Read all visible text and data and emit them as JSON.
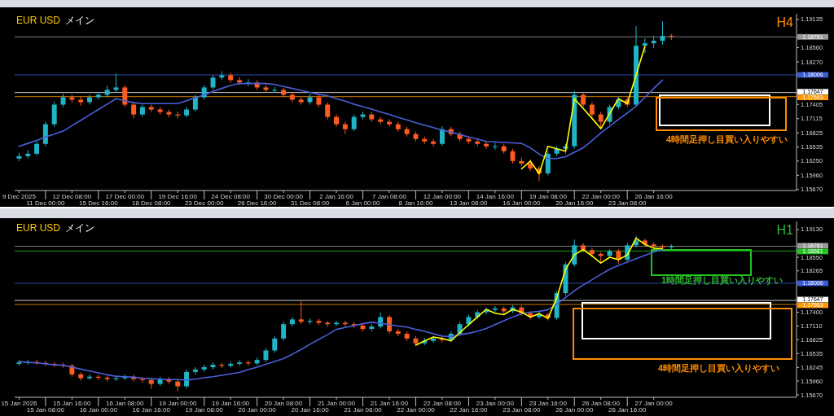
{
  "chart_data": [
    {
      "type": "candlestick",
      "title": "EUR USD",
      "subtitle": "メイン",
      "annotations": [
        "H4",
        "4時間足押し目買い入りやすい"
      ],
      "categories": [
        "9 Dec 2025",
        null,
        null,
        "11 Dec 00:00",
        null,
        null,
        "12 Dec 08:00",
        null,
        null,
        "15 Dec 16:00",
        null,
        null,
        "17 Dec 00:00",
        null,
        null,
        "18 Dec 08:00",
        null,
        null,
        "19 Dec 16:00",
        null,
        null,
        "23 Dec 00:00",
        null,
        null,
        "24 Dec 08:00",
        null,
        null,
        "26 Dec 16:00",
        null,
        null,
        "30 Dec 00:00",
        null,
        null,
        "31 Dec 08:00",
        null,
        null,
        "2 Jan 16:00",
        null,
        null,
        "6 Jan 00:00",
        null,
        null,
        "7 Jan 08:00",
        null,
        null,
        "8 Jan 16:00",
        null,
        null,
        "12 Jan 00:00",
        null,
        null,
        "13 Jan 08:00",
        null,
        null,
        "14 Jan 16:00",
        null,
        null,
        "16 Jan 00:00",
        null,
        null,
        "19 Jan 08:00",
        null,
        null,
        "20 Jan 16:00",
        null,
        null,
        "22 Jan 00:00",
        null,
        null,
        "23 Jan 08:00",
        null,
        null,
        "26 Jan 16:00",
        null,
        null
      ],
      "ohlc": [
        [
          1.163,
          1.1642,
          1.1625,
          1.1635
        ],
        [
          1.1635,
          1.1648,
          1.163,
          1.164
        ],
        [
          1.164,
          1.1665,
          1.1636,
          1.166
        ],
        [
          1.166,
          1.1705,
          1.1655,
          1.17
        ],
        [
          1.17,
          1.1746,
          1.1695,
          1.174
        ],
        [
          1.174,
          1.1762,
          1.1735,
          1.1755
        ],
        [
          1.1755,
          1.176,
          1.1744,
          1.175
        ],
        [
          1.175,
          1.1756,
          1.1738,
          1.1745
        ],
        [
          1.1745,
          1.176,
          1.174,
          1.1755
        ],
        [
          1.1755,
          1.1766,
          1.175,
          1.176
        ],
        [
          1.176,
          1.1778,
          1.1755,
          1.177
        ],
        [
          1.177,
          1.1803,
          1.1765,
          1.1775
        ],
        [
          1.1775,
          1.178,
          1.1735,
          1.174
        ],
        [
          1.174,
          1.1745,
          1.1712,
          1.172
        ],
        [
          1.172,
          1.174,
          1.1715,
          1.1735
        ],
        [
          1.1735,
          1.174,
          1.1725,
          1.173
        ],
        [
          1.173,
          1.1735,
          1.172,
          1.1725
        ],
        [
          1.1725,
          1.173,
          1.1714,
          1.172
        ],
        [
          1.172,
          1.1726,
          1.1712,
          1.1718
        ],
        [
          1.1718,
          1.1735,
          1.1714,
          1.173
        ],
        [
          1.173,
          1.176,
          1.1726,
          1.1755
        ],
        [
          1.1755,
          1.178,
          1.175,
          1.1775
        ],
        [
          1.1775,
          1.18,
          1.177,
          1.1795
        ],
        [
          1.1795,
          1.1808,
          1.179,
          1.18
        ],
        [
          1.18,
          1.1805,
          1.1785,
          1.179
        ],
        [
          1.179,
          1.1796,
          1.178,
          1.1785
        ],
        [
          1.1785,
          1.1792,
          1.1778,
          1.1785
        ],
        [
          1.1785,
          1.179,
          1.177,
          1.1775
        ],
        [
          1.1775,
          1.178,
          1.1765,
          1.177
        ],
        [
          1.177,
          1.1776,
          1.1764,
          1.177
        ],
        [
          1.177,
          1.1774,
          1.1755,
          1.176
        ],
        [
          1.176,
          1.1765,
          1.1745,
          1.175
        ],
        [
          1.175,
          1.1755,
          1.174,
          1.1745
        ],
        [
          1.1745,
          1.1762,
          1.174,
          1.1755
        ],
        [
          1.1755,
          1.176,
          1.1735,
          1.174
        ],
        [
          1.174,
          1.1745,
          1.171,
          1.1715
        ],
        [
          1.1715,
          1.172,
          1.1695,
          1.17
        ],
        [
          1.17,
          1.1705,
          1.168,
          1.169
        ],
        [
          1.169,
          1.172,
          1.1686,
          1.1715
        ],
        [
          1.1715,
          1.1726,
          1.171,
          1.172
        ],
        [
          1.172,
          1.1725,
          1.1705,
          1.171
        ],
        [
          1.171,
          1.1715,
          1.17,
          1.1705
        ],
        [
          1.1705,
          1.171,
          1.1695,
          1.17
        ],
        [
          1.17,
          1.1705,
          1.1685,
          1.169
        ],
        [
          1.169,
          1.1695,
          1.1675,
          1.168
        ],
        [
          1.168,
          1.1685,
          1.1665,
          1.167
        ],
        [
          1.167,
          1.1675,
          1.166,
          1.1665
        ],
        [
          1.1665,
          1.167,
          1.1655,
          1.166
        ],
        [
          1.166,
          1.1696,
          1.1656,
          1.169
        ],
        [
          1.169,
          1.1695,
          1.1676,
          1.168
        ],
        [
          1.168,
          1.1685,
          1.1665,
          1.167
        ],
        [
          1.167,
          1.1675,
          1.166,
          1.1665
        ],
        [
          1.1665,
          1.167,
          1.1655,
          1.166
        ],
        [
          1.166,
          1.1665,
          1.165,
          1.1655
        ],
        [
          1.1655,
          1.1662,
          1.1648,
          1.1655
        ],
        [
          1.1655,
          1.166,
          1.164,
          1.1645
        ],
        [
          1.1645,
          1.165,
          1.162,
          1.1625
        ],
        [
          1.1625,
          1.1632,
          1.1615,
          1.162
        ],
        [
          1.162,
          1.1628,
          1.1605,
          1.161
        ],
        [
          1.161,
          1.1615,
          1.1584,
          1.16
        ],
        [
          1.16,
          1.1645,
          1.1596,
          1.164
        ],
        [
          1.164,
          1.1656,
          1.1635,
          1.165
        ],
        [
          1.165,
          1.166,
          1.164,
          1.1655
        ],
        [
          1.1655,
          1.1768,
          1.165,
          1.176
        ],
        [
          1.176,
          1.1765,
          1.1735,
          1.174
        ],
        [
          1.174,
          1.1745,
          1.1715,
          1.172
        ],
        [
          1.172,
          1.1725,
          1.1692,
          1.1705
        ],
        [
          1.1705,
          1.174,
          1.17,
          1.1735
        ],
        [
          1.1735,
          1.1756,
          1.173,
          1.175
        ],
        [
          1.175,
          1.1755,
          1.1735,
          1.174
        ],
        [
          1.174,
          1.19,
          1.1736,
          1.186
        ],
        [
          1.186,
          1.1875,
          1.1845,
          1.1865
        ],
        [
          1.1865,
          1.188,
          1.1855,
          1.187
        ],
        [
          1.187,
          1.191,
          1.1862,
          1.188
        ],
        [
          1.188,
          1.1884,
          1.1872,
          1.1878
        ]
      ],
      "colors": [
        "#1fb5c7",
        "#1fb5c7",
        "#1fb5c7",
        "#1fb5c7",
        "#1fb5c7",
        "#1fb5c7",
        "#ff5a1f",
        "#ff5a1f",
        "#1fb5c7",
        "#1fb5c7",
        "#1fb5c7",
        "#1fb5c7",
        "#ff5a1f",
        "#ff5a1f",
        "#1fb5c7",
        "#ff5a1f",
        "#ff5a1f",
        "#ff5a1f",
        "#ff5a1f",
        "#1fb5c7",
        "#1fb5c7",
        "#1fb5c7",
        "#1fb5c7",
        "#1fb5c7",
        "#ff5a1f",
        "#ff5a1f",
        "#1fb5c7",
        "#ff5a1f",
        "#ff5a1f",
        "#1fb5c7",
        "#ff5a1f",
        "#ff5a1f",
        "#ff5a1f",
        "#1fb5c7",
        "#ff5a1f",
        "#ff5a1f",
        "#ff5a1f",
        "#ff5a1f",
        "#1fb5c7",
        "#1fb5c7",
        "#ff5a1f",
        "#ff5a1f",
        "#ff5a1f",
        "#ff5a1f",
        "#ff5a1f",
        "#ff5a1f",
        "#ff5a1f",
        "#ff5a1f",
        "#1fb5c7",
        "#ff5a1f",
        "#ff5a1f",
        "#ff5a1f",
        "#ff5a1f",
        "#ff5a1f",
        "#1fb5c7",
        "#ff5a1f",
        "#ff5a1f",
        "#ff5a1f",
        "#ff5a1f",
        "#ff5a1f",
        "#1fb5c7",
        "#1fb5c7",
        "#1fb5c7",
        "#1fb5c7",
        "#ff5a1f",
        "#ff5a1f",
        "#ff5a1f",
        "#1fb5c7",
        "#1fb5c7",
        "#ff5a1f",
        "#1fb5c7",
        "#1fb5c7",
        "#1fb5c7",
        "#1fb5c7",
        "#ff5a1f"
      ],
      "series": [
        {
          "type": "line",
          "color": "#4a5fd8",
          "values": [
            1.1655,
            1.1661,
            1.1667,
            1.1674,
            1.168,
            1.1686,
            1.1697,
            1.1708,
            1.1719,
            1.173,
            1.1741,
            1.1752,
            1.1748,
            1.1744,
            1.1742,
            1.1742,
            1.1742,
            1.1742,
            1.1742,
            1.1748,
            1.1754,
            1.176,
            1.1767,
            1.1773,
            1.1779,
            1.1783,
            1.1783,
            1.1783,
            1.1783,
            1.1781,
            1.1777,
            1.1773,
            1.1769,
            1.1765,
            1.1761,
            1.1758,
            1.1752,
            1.1747,
            1.1741,
            1.1736,
            1.1731,
            1.1725,
            1.172,
            1.1714,
            1.1709,
            1.1703,
            1.1698,
            1.1693,
            1.1688,
            1.1684,
            1.1679,
            1.1674,
            1.167,
            1.1665,
            1.1664,
            1.1663,
            1.1662,
            1.1661,
            1.1652,
            1.1639,
            1.163,
            1.163,
            1.1634,
            1.1643,
            1.1652,
            1.1667,
            1.1682,
            1.1696,
            1.171,
            1.1723,
            1.1737,
            1.1755,
            1.1773,
            1.179,
            null
          ]
        },
        {
          "type": "line",
          "color": "#ffff00",
          "values": [
            null,
            null,
            null,
            null,
            null,
            null,
            null,
            null,
            null,
            null,
            null,
            null,
            null,
            null,
            null,
            null,
            null,
            null,
            null,
            null,
            null,
            null,
            null,
            null,
            null,
            null,
            null,
            null,
            null,
            null,
            null,
            null,
            null,
            null,
            null,
            null,
            null,
            null,
            null,
            null,
            null,
            null,
            null,
            null,
            null,
            null,
            null,
            null,
            null,
            null,
            null,
            null,
            null,
            null,
            null,
            null,
            null,
            1.1609,
            1.1625,
            1.1599,
            1.1655,
            1.165,
            1.1645,
            1.1752,
            1.1732,
            1.1712,
            1.1691,
            1.1722,
            1.1752,
            1.1742,
            1.18,
            1.1859,
            null,
            null,
            null
          ]
        }
      ],
      "ylim": [
        1.1565,
        1.1925
      ],
      "yticks": [
        {
          "value": 1.1567,
          "label": "1.15670"
        },
        {
          "value": 1.1596,
          "label": "1.15960"
        },
        {
          "value": 1.1625,
          "label": "1.16250"
        },
        1.16535,
        1.16825,
        1.17115,
        1.17405,
        {
          "value": 1.1827,
          "label": "1.18270"
        },
        {
          "value": 1.1856,
          "label": "1.18560"
        },
        1.19135
      ],
      "ref_lines": [
        {
          "axis": "y",
          "value": 1.18781,
          "label": "1.18781",
          "color": "#9a9a9a"
        },
        {
          "axis": "y",
          "value": 1.18006,
          "label": "1.18006",
          "color": "#3a5bd9"
        },
        {
          "axis": "y",
          "value": 1.17647,
          "label": "1.17647",
          "color": "#ffffff"
        },
        {
          "axis": "y",
          "value": 1.17563,
          "label": "1.17563",
          "color": "#ff9900"
        }
      ]
    },
    {
      "type": "candlestick",
      "title": "EUR USD",
      "subtitle": "メイン",
      "annotations": [
        "H1",
        "1時間足押し目買い入りやすい",
        "4時間足押し目買い入りやすい"
      ],
      "categories": [
        "15 Jan 2026",
        null,
        null,
        "15 Jan 08:00",
        null,
        null,
        "15 Jan 16:00",
        null,
        null,
        "16 Jan 00:00",
        null,
        null,
        "16 Jan 08:00",
        null,
        null,
        "16 Jan 16:00",
        null,
        null,
        "19 Jan 00:00",
        null,
        null,
        "19 Jan 08:00",
        null,
        null,
        "19 Jan 16:00",
        null,
        null,
        "20 Jan 00:00",
        null,
        null,
        "20 Jan 08:00",
        null,
        null,
        "20 Jan 16:00",
        null,
        null,
        "21 Jan 00:00",
        null,
        null,
        "21 Jan 08:00",
        null,
        null,
        "21 Jan 16:00",
        null,
        null,
        "22 Jan 00:00",
        null,
        null,
        "22 Jan 08:00",
        null,
        null,
        "22 Jan 16:00",
        null,
        null,
        "23 Jan 00:00",
        null,
        null,
        "23 Jan 08:00",
        null,
        null,
        "23 Jan 16:00",
        null,
        null,
        "26 Jan 00:00",
        null,
        null,
        "26 Jan 08:00",
        null,
        null,
        "26 Jan 16:00",
        null,
        null,
        "27 Jan 00:00",
        null,
        null
      ],
      "ohlc": [
        [
          1.1632,
          1.164,
          1.1628,
          1.1635
        ],
        [
          1.1635,
          1.164,
          1.163,
          1.1636
        ],
        [
          1.1636,
          1.164,
          1.163,
          1.1634
        ],
        [
          1.1634,
          1.1638,
          1.1628,
          1.1632
        ],
        [
          1.1632,
          1.1636,
          1.1626,
          1.163
        ],
        [
          1.163,
          1.1634,
          1.1624,
          1.1628
        ],
        [
          1.1628,
          1.1632,
          1.1605,
          1.161
        ],
        [
          1.161,
          1.1614,
          1.1597,
          1.1602
        ],
        [
          1.1602,
          1.161,
          1.1598,
          1.1605
        ],
        [
          1.1605,
          1.1609,
          1.1598,
          1.1603
        ],
        [
          1.1603,
          1.1607,
          1.1595,
          1.16
        ],
        [
          1.16,
          1.1606,
          1.1596,
          1.1602
        ],
        [
          1.1602,
          1.161,
          1.1598,
          1.1605
        ],
        [
          1.1605,
          1.1609,
          1.1595,
          1.16
        ],
        [
          1.16,
          1.1604,
          1.1593,
          1.1598
        ],
        [
          1.1598,
          1.1602,
          1.158,
          1.159
        ],
        [
          1.159,
          1.1605,
          1.1586,
          1.16
        ],
        [
          1.16,
          1.1604,
          1.159,
          1.1595
        ],
        [
          1.1595,
          1.16,
          1.1575,
          1.1585
        ],
        [
          1.1585,
          1.162,
          1.158,
          1.1615
        ],
        [
          1.1615,
          1.1625,
          1.161,
          1.162
        ],
        [
          1.162,
          1.163,
          1.1615,
          1.1625
        ],
        [
          1.1625,
          1.1635,
          1.162,
          1.163
        ],
        [
          1.163,
          1.1634,
          1.1623,
          1.1628
        ],
        [
          1.1628,
          1.1637,
          1.1624,
          1.1632
        ],
        [
          1.1632,
          1.164,
          1.1628,
          1.1635
        ],
        [
          1.1635,
          1.1639,
          1.1628,
          1.1633
        ],
        [
          1.1633,
          1.1645,
          1.1629,
          1.164
        ],
        [
          1.164,
          1.1665,
          1.1636,
          1.166
        ],
        [
          1.166,
          1.169,
          1.1655,
          1.1685
        ],
        [
          1.1685,
          1.172,
          1.168,
          1.1715
        ],
        [
          1.1715,
          1.173,
          1.171,
          1.1725
        ],
        [
          1.1725,
          1.1764,
          1.1716,
          1.172
        ],
        [
          1.172,
          1.1727,
          1.1715,
          1.1722
        ],
        [
          1.1722,
          1.1726,
          1.1713,
          1.1718
        ],
        [
          1.1718,
          1.1722,
          1.171,
          1.1715
        ],
        [
          1.1715,
          1.1722,
          1.1711,
          1.1718
        ],
        [
          1.1718,
          1.1722,
          1.171,
          1.1715
        ],
        [
          1.1715,
          1.1719,
          1.1707,
          1.1712
        ],
        [
          1.1712,
          1.1716,
          1.17,
          1.1705
        ],
        [
          1.1705,
          1.1715,
          1.17,
          1.171
        ],
        [
          1.171,
          1.174,
          1.1706,
          1.173
        ],
        [
          1.173,
          1.1734,
          1.1695,
          1.17
        ],
        [
          1.17,
          1.1705,
          1.169,
          1.1695
        ],
        [
          1.1695,
          1.17,
          1.168,
          1.1685
        ],
        [
          1.1685,
          1.169,
          1.167,
          1.1675
        ],
        [
          1.1675,
          1.1686,
          1.1671,
          1.168
        ],
        [
          1.168,
          1.169,
          1.1676,
          1.1685
        ],
        [
          1.1685,
          1.1689,
          1.1677,
          1.1682
        ],
        [
          1.1682,
          1.17,
          1.1678,
          1.1695
        ],
        [
          1.1695,
          1.172,
          1.169,
          1.1715
        ],
        [
          1.1715,
          1.1735,
          1.171,
          1.173
        ],
        [
          1.173,
          1.1745,
          1.1726,
          1.174
        ],
        [
          1.174,
          1.175,
          1.1735,
          1.1745
        ],
        [
          1.1745,
          1.1753,
          1.174,
          1.1748
        ],
        [
          1.1748,
          1.1752,
          1.1737,
          1.1742
        ],
        [
          1.1742,
          1.1755,
          1.1738,
          1.175
        ],
        [
          1.175,
          1.1754,
          1.1733,
          1.1738
        ],
        [
          1.1738,
          1.1742,
          1.1725,
          1.173
        ],
        [
          1.173,
          1.174,
          1.1726,
          1.1735
        ],
        [
          1.1735,
          1.1739,
          1.1723,
          1.1728
        ],
        [
          1.1728,
          1.1785,
          1.1724,
          1.178
        ],
        [
          1.178,
          1.1845,
          1.1775,
          1.184
        ],
        [
          1.184,
          1.1892,
          1.1835,
          1.188
        ],
        [
          1.188,
          1.1885,
          1.1865,
          1.187
        ],
        [
          1.187,
          1.1875,
          1.1855,
          1.1862
        ],
        [
          1.1862,
          1.1866,
          1.1845,
          1.1858
        ],
        [
          1.1858,
          1.1872,
          1.1854,
          1.1868
        ],
        [
          1.1868,
          1.1872,
          1.1842,
          1.185
        ],
        [
          1.185,
          1.1885,
          1.1846,
          1.188
        ],
        [
          1.188,
          1.19,
          1.1876,
          1.189
        ],
        [
          1.189,
          1.1894,
          1.1878,
          1.1882
        ],
        [
          1.1882,
          1.1886,
          1.1873,
          1.1878
        ],
        [
          1.1878,
          1.1882,
          1.1872,
          1.1876
        ],
        [
          1.1876,
          1.1882,
          1.1872,
          1.1878
        ]
      ],
      "colors": [
        "#1fb5c7",
        "#1fb5c7",
        "#ff5a1f",
        "#ff5a1f",
        "#ff5a1f",
        "#ff5a1f",
        "#ff5a1f",
        "#ff5a1f",
        "#1fb5c7",
        "#ff5a1f",
        "#ff5a1f",
        "#1fb5c7",
        "#1fb5c7",
        "#ff5a1f",
        "#ff5a1f",
        "#ff5a1f",
        "#1fb5c7",
        "#ff5a1f",
        "#ff5a1f",
        "#1fb5c7",
        "#1fb5c7",
        "#1fb5c7",
        "#1fb5c7",
        "#ff5a1f",
        "#1fb5c7",
        "#1fb5c7",
        "#ff5a1f",
        "#1fb5c7",
        "#1fb5c7",
        "#1fb5c7",
        "#1fb5c7",
        "#1fb5c7",
        "#ff5a1f",
        "#1fb5c7",
        "#ff5a1f",
        "#ff5a1f",
        "#1fb5c7",
        "#ff5a1f",
        "#ff5a1f",
        "#ff5a1f",
        "#1fb5c7",
        "#1fb5c7",
        "#ff5a1f",
        "#ff5a1f",
        "#ff5a1f",
        "#ff5a1f",
        "#1fb5c7",
        "#1fb5c7",
        "#ff5a1f",
        "#1fb5c7",
        "#1fb5c7",
        "#1fb5c7",
        "#1fb5c7",
        "#1fb5c7",
        "#1fb5c7",
        "#ff5a1f",
        "#1fb5c7",
        "#ff5a1f",
        "#ff5a1f",
        "#1fb5c7",
        "#ff5a1f",
        "#1fb5c7",
        "#1fb5c7",
        "#1fb5c7",
        "#ff5a1f",
        "#ff5a1f",
        "#ff5a1f",
        "#1fb5c7",
        "#ff5a1f",
        "#1fb5c7",
        "#1fb5c7",
        "#ff5a1f",
        "#ff5a1f",
        "#ff5a1f",
        "#1fb5c7"
      ],
      "series": [
        {
          "type": "line",
          "color": "#4a5fd8",
          "values": [
            1.1637,
            1.1635,
            1.1634,
            1.1632,
            1.163,
            1.1629,
            1.1625,
            1.1621,
            1.1617,
            1.1613,
            1.1609,
            1.1606,
            1.1605,
            1.1604,
            1.1602,
            1.1601,
            1.16,
            1.1599,
            1.1599,
            1.1598,
            1.16,
            1.1603,
            1.1605,
            1.1608,
            1.1611,
            1.1614,
            1.162,
            1.1625,
            1.1631,
            1.1637,
            1.1643,
            1.1652,
            1.1662,
            1.1673,
            1.1683,
            1.1693,
            1.1704,
            1.1708,
            1.1712,
            1.1716,
            1.1719,
            1.1717,
            1.1714,
            1.1711,
            1.1709,
            1.1704,
            1.17,
            1.1695,
            1.169,
            1.1689,
            1.1693,
            1.1696,
            1.17,
            1.1706,
            1.1714,
            1.1722,
            1.173,
            1.1737,
            1.174,
            1.1742,
            1.1745,
            1.1757,
            1.1771,
            1.1785,
            1.1797,
            1.1808,
            1.1819,
            1.183,
            1.1838,
            1.1845,
            1.1852,
            1.1859,
            1.1866,
            1.1871,
            null
          ]
        },
        {
          "type": "line",
          "color": "#ffff00",
          "values": [
            null,
            null,
            null,
            null,
            null,
            null,
            null,
            null,
            null,
            null,
            null,
            null,
            null,
            null,
            null,
            null,
            null,
            null,
            null,
            null,
            null,
            null,
            null,
            null,
            null,
            null,
            null,
            null,
            null,
            null,
            null,
            null,
            null,
            null,
            null,
            null,
            null,
            null,
            null,
            null,
            null,
            null,
            null,
            null,
            null,
            1.1671,
            1.168,
            1.1688,
            1.1685,
            1.168,
            1.1697,
            1.1714,
            1.173,
            1.1746,
            1.1738,
            1.1735,
            1.1746,
            1.174,
            1.173,
            1.1737,
            1.1727,
            1.177,
            1.183,
            1.186,
            1.1871,
            1.1858,
            1.1843,
            1.1855,
            1.185,
            1.186,
            1.1895,
            1.1882,
            1.1874,
            1.1873,
            null
          ]
        }
      ],
      "ylim": [
        1.1562,
        1.193
      ],
      "yticks": [
        {
          "value": 1.1567,
          "label": "1.15670"
        },
        {
          "value": 1.1596,
          "label": "1.15960"
        },
        1.16245,
        1.16535,
        1.16825,
        {
          "value": 1.1711,
          "label": "1.17110"
        },
        {
          "value": 1.174,
          "label": "1.17400"
        },
        1.18265,
        {
          "value": 1.1855,
          "label": "1.18550"
        },
        {
          "value": 1.1913,
          "label": "1.19130"
        }
      ],
      "ref_lines": [
        {
          "axis": "y",
          "value": 1.18781,
          "label": "1.18781",
          "color": "#9a9a9a"
        },
        {
          "axis": "y",
          "value": 1.18681,
          "label": "1.18681",
          "color": "#22c322"
        },
        {
          "axis": "y",
          "value": 1.18006,
          "label": "1.18006",
          "color": "#3a5bd9"
        },
        {
          "axis": "y",
          "value": 1.17647,
          "label": "1.17647",
          "color": "#ffffff"
        },
        {
          "axis": "y",
          "value": 1.17563,
          "label": "1.17563",
          "color": "#ff9900"
        }
      ]
    }
  ]
}
